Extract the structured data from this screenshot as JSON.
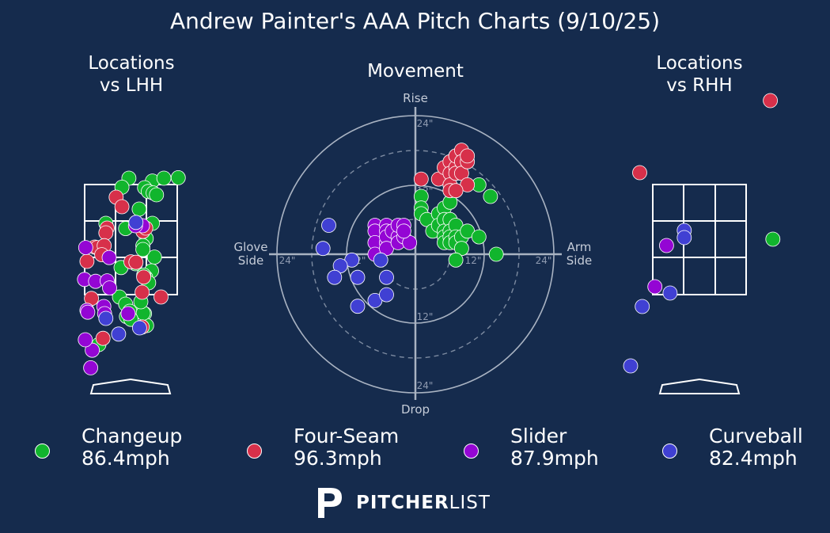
{
  "title": "Andrew Painter's AAA Pitch Charts (9/10/25)",
  "panels": {
    "lhh": {
      "title_line1": "Locations",
      "title_line2": "vs LHH"
    },
    "movement": {
      "title": "Movement"
    },
    "rhh": {
      "title_line1": "Locations",
      "title_line2": "vs RHH"
    }
  },
  "movement_labels": {
    "rise": "Rise",
    "drop": "Drop",
    "glove_1": "Glove",
    "glove_2": "Side",
    "arm_1": "Arm",
    "arm_2": "Side",
    "r24_top": "24\"",
    "r12_top": "12\"",
    "r12_bottom": "12\"",
    "r24_bottom": "24\"",
    "r24_left": "24\"",
    "r12_left": "12\"",
    "r12_right": "12\"",
    "r24_right": "24\""
  },
  "legend": [
    {
      "name": "Changeup",
      "speed": "86.4mph",
      "color": "#11b52d"
    },
    {
      "name": "Four-Seam",
      "speed": "96.3mph",
      "color": "#d7304a"
    },
    {
      "name": "Slider",
      "speed": "87.9mph",
      "color": "#9406d4"
    },
    {
      "name": "Curveball",
      "speed": "82.4mph",
      "color": "#4040d3"
    }
  ],
  "logo": {
    "brand_bold": "PITCHER",
    "brand_light": "LIST",
    "icon": "pitcherlist-p-icon"
  },
  "chart_data": [
    {
      "type": "scatter",
      "title": "Locations vs LHH",
      "x_units": "px_norm",
      "x": [],
      "series": [
        {
          "name": "Changeup",
          "color": "#11b52d",
          "points": [
            [
              0.53,
              2.39
            ],
            [
              -0.04,
              2.45
            ],
            [
              -0.21,
              2.26
            ],
            [
              0.34,
              2.25
            ],
            [
              0.43,
              2.17
            ],
            [
              0.55,
              2.14
            ],
            [
              0.63,
              2.1
            ],
            [
              1.16,
              2.46
            ],
            [
              0.81,
              2.45
            ],
            [
              0.21,
              1.8
            ],
            [
              0.53,
              1.5
            ],
            [
              -0.12,
              1.39
            ],
            [
              0.38,
              1.18
            ],
            [
              -0.6,
              1.5
            ],
            [
              0.3,
              1.03
            ],
            [
              0.58,
              0.79
            ],
            [
              0.12,
              0.65
            ],
            [
              0.3,
              0.95
            ],
            [
              0.51,
              0.5
            ],
            [
              0.37,
              0.36
            ],
            [
              0.32,
              0.41
            ],
            [
              -0.23,
              0.57
            ],
            [
              0.44,
              0.25
            ],
            [
              -0.27,
              -0.05
            ],
            [
              -0.12,
              -0.2
            ],
            [
              0.34,
              -0.4
            ],
            [
              0.24,
              -0.36
            ],
            [
              -0.02,
              -0.35
            ],
            [
              -0.1,
              -0.46
            ],
            [
              -0.77,
              -1.05
            ],
            [
              0.39,
              -0.65
            ],
            [
              0.31,
              -0.39
            ],
            [
              0.01,
              -0.52
            ],
            [
              0.25,
              -0.15
            ]
          ]
        },
        {
          "name": "Four-Seam",
          "color": "#d7304a",
          "points": [
            [
              -0.35,
              2.05
            ],
            [
              -0.21,
              1.85
            ],
            [
              -0.57,
              1.4
            ],
            [
              -0.6,
              1.3
            ],
            [
              0.3,
              1.33
            ],
            [
              0.37,
              1.4
            ],
            [
              -0.87,
              1.0
            ],
            [
              -0.81,
              0.99
            ],
            [
              -0.64,
              1.03
            ],
            [
              -0.7,
              0.84
            ],
            [
              -1.06,
              0.7
            ],
            [
              0.01,
              0.69
            ],
            [
              0.13,
              0.68
            ],
            [
              0.32,
              0.37
            ],
            [
              0.28,
              0.05
            ],
            [
              -0.95,
              -0.08
            ],
            [
              0.74,
              -0.05
            ],
            [
              -0.67,
              -0.92
            ],
            [
              0.28,
              -0.68
            ]
          ]
        },
        {
          "name": "Slider",
          "color": "#9406d4",
          "points": [
            [
              0.29,
              1.45
            ],
            [
              0.12,
              1.45
            ],
            [
              -1.09,
              0.99
            ],
            [
              -0.52,
              0.78
            ],
            [
              -1.12,
              0.32
            ],
            [
              -0.85,
              0.28
            ],
            [
              -0.57,
              0.29
            ],
            [
              -0.51,
              0.14
            ],
            [
              -0.65,
              -0.25
            ],
            [
              -1.06,
              -0.33
            ],
            [
              -1.04,
              -0.37
            ],
            [
              -0.63,
              -0.4
            ],
            [
              -0.06,
              -0.4
            ],
            [
              -0.93,
              -1.17
            ],
            [
              -1.1,
              -0.95
            ],
            [
              -0.97,
              -1.54
            ]
          ]
        },
        {
          "name": "Curveball",
          "color": "#4040d3",
          "points": [
            [
              -0.6,
              -0.5
            ],
            [
              -0.29,
              -0.83
            ],
            [
              0.22,
              -0.7
            ],
            [
              0.13,
              1.52
            ]
          ]
        }
      ]
    },
    {
      "type": "scatter",
      "title": "Movement",
      "x_units": "inches horizontal break (arm side +)",
      "y_units": "inches induced vertical break",
      "rings": [
        12,
        24
      ],
      "series": [
        {
          "name": "Changeup",
          "color": "#11b52d",
          "points": [
            [
              1,
              10
            ],
            [
              1,
              8
            ],
            [
              1,
              7
            ],
            [
              2,
              6
            ],
            [
              3,
              4
            ],
            [
              4,
              7
            ],
            [
              4,
              5
            ],
            [
              5,
              8
            ],
            [
              5,
              6
            ],
            [
              5,
              4
            ],
            [
              5,
              3
            ],
            [
              5,
              2
            ],
            [
              6,
              6
            ],
            [
              6,
              4
            ],
            [
              6,
              9
            ],
            [
              6,
              3
            ],
            [
              6,
              2
            ],
            [
              7,
              5
            ],
            [
              7,
              3
            ],
            [
              7,
              2
            ],
            [
              8,
              3
            ],
            [
              8,
              1
            ],
            [
              9,
              4
            ],
            [
              11,
              12
            ],
            [
              11,
              3
            ],
            [
              13,
              10
            ],
            [
              14,
              0
            ],
            [
              7,
              -1
            ]
          ]
        },
        {
          "name": "Four-Seam",
          "color": "#d7304a",
          "points": [
            [
              1,
              13
            ],
            [
              4,
              13
            ],
            [
              5,
              15
            ],
            [
              6,
              16
            ],
            [
              6,
              14
            ],
            [
              6,
              12
            ],
            [
              6,
              11
            ],
            [
              7,
              17
            ],
            [
              7,
              15
            ],
            [
              7,
              14
            ],
            [
              7,
              17
            ],
            [
              8,
              18
            ],
            [
              8,
              16
            ],
            [
              8,
              14
            ],
            [
              9,
              16
            ],
            [
              9,
              17
            ],
            [
              9,
              12
            ],
            [
              7,
              11
            ]
          ]
        },
        {
          "name": "Slider",
          "color": "#9406d4",
          "points": [
            [
              -7,
              5
            ],
            [
              -7,
              4
            ],
            [
              -5,
              5
            ],
            [
              -5,
              4
            ],
            [
              -7,
              2
            ],
            [
              -7,
              0
            ],
            [
              -5,
              2
            ],
            [
              -5,
              3
            ],
            [
              -5,
              1
            ],
            [
              -4,
              4
            ],
            [
              -3,
              3
            ],
            [
              -3,
              5
            ],
            [
              -3,
              2
            ],
            [
              -2,
              3
            ],
            [
              -2,
              5
            ],
            [
              -1,
              2
            ],
            [
              -2,
              4
            ]
          ]
        },
        {
          "name": "Curveball",
          "color": "#4040d3",
          "points": [
            [
              -15,
              5
            ],
            [
              -16,
              1
            ],
            [
              -11,
              -1
            ],
            [
              -13,
              -2
            ],
            [
              -10,
              -4
            ],
            [
              -14,
              -4
            ],
            [
              -6,
              -1
            ],
            [
              -5,
              -4
            ],
            [
              -7,
              -8
            ],
            [
              -10,
              -9
            ],
            [
              -5,
              -7
            ]
          ]
        }
      ]
    },
    {
      "type": "scatter",
      "title": "Locations vs RHH",
      "series": [
        {
          "name": "Changeup",
          "color": "#11b52d",
          "points": [
            [
              1.45,
              0.7
            ]
          ]
        },
        {
          "name": "Four-Seam",
          "color": "#d7304a",
          "points": [
            [
              1.4,
              2.45
            ],
            [
              -1.18,
              1.54
            ]
          ]
        },
        {
          "name": "Slider",
          "color": "#9406d4",
          "points": [
            [
              -0.65,
              0.62
            ],
            [
              -0.88,
              0.1
            ]
          ]
        },
        {
          "name": "Curveball",
          "color": "#4040d3",
          "points": [
            [
              -0.3,
              0.81
            ],
            [
              -0.3,
              0.72
            ],
            [
              -0.58,
              0.02
            ],
            [
              -1.13,
              -0.15
            ],
            [
              -1.36,
              -0.9
            ]
          ]
        }
      ]
    }
  ]
}
